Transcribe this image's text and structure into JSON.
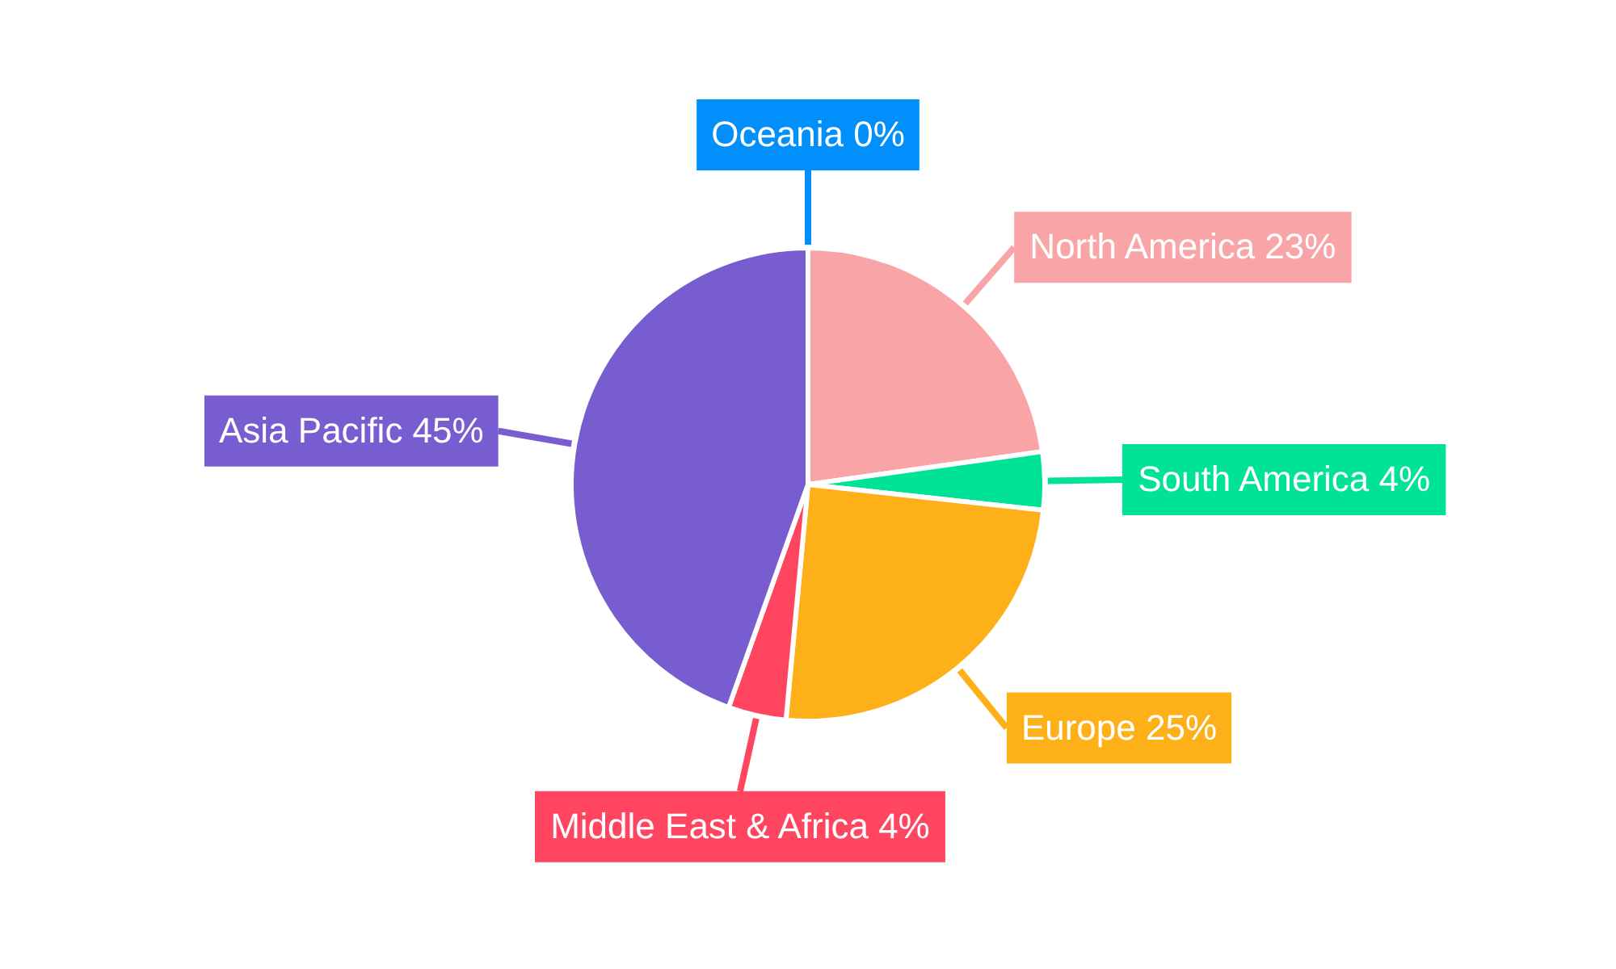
{
  "chart_data": {
    "type": "pie",
    "categories": [
      "North America",
      "South America",
      "Europe",
      "Middle East & Africa",
      "Asia Pacific",
      "Oceania"
    ],
    "values": [
      23,
      4,
      25,
      4,
      45,
      0
    ],
    "value_labels": [
      "23%",
      "4%",
      "25%",
      "4%",
      "45%",
      "0%"
    ],
    "colors": [
      "#f9a5a7",
      "#00e396",
      "#feb019",
      "#ff4560",
      "#775dd0",
      "#008ffb"
    ],
    "legend": false
  }
}
